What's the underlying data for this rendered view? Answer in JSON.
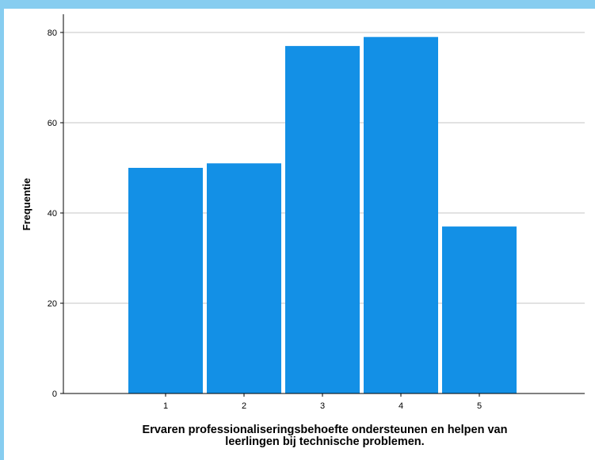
{
  "chart_data": {
    "type": "bar",
    "categories": [
      "1",
      "2",
      "3",
      "4",
      "5"
    ],
    "values": [
      50,
      51,
      77,
      79,
      37
    ],
    "title": "",
    "xlabel": "Ervaren professionaliseringsbehoefte ondersteunen en helpen van\nleerlingen bij technische problemen.",
    "ylabel": "Frequentie",
    "ylim": [
      0,
      80
    ],
    "yticks": [
      "0",
      "20",
      "40",
      "60",
      "80"
    ],
    "grid": true,
    "bar_color": "#1390e6",
    "legend": "none"
  }
}
